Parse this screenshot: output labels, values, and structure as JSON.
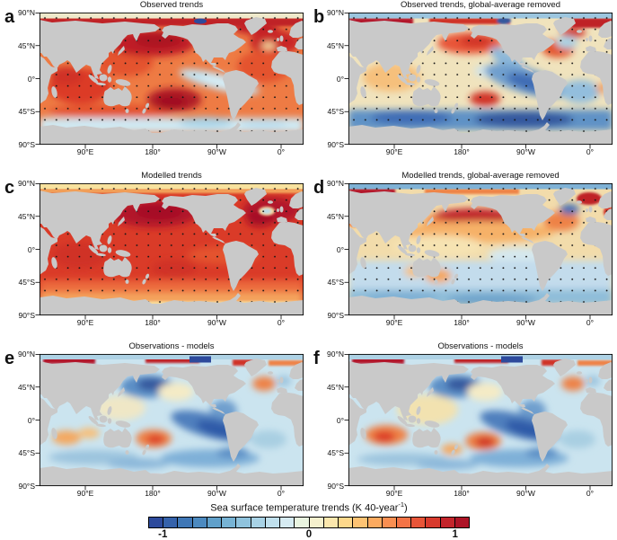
{
  "colorbar": {
    "title_main": "Sea surface temperature trends (K 40-year",
    "title_sup": "-1",
    "title_close": ")",
    "tick_labels": [
      "-1",
      "0",
      "1"
    ],
    "range": [
      -1.1,
      1.1
    ],
    "colors": [
      "#2d4a9c",
      "#3562ab",
      "#3f77b6",
      "#4c8ac0",
      "#60a0ca",
      "#77b3d4",
      "#8fc3dd",
      "#a8d2e5",
      "#c0e0ed",
      "#d6ebf2",
      "#e9f4e0",
      "#f5f0cd",
      "#fbe7ad",
      "#fdd88b",
      "#fdc373",
      "#fcaa5f",
      "#f98f52",
      "#f37346",
      "#e85538",
      "#d83a2d",
      "#c4252b",
      "#ad1326"
    ]
  },
  "axes": {
    "y_ticks": [
      "90°N",
      "45°N",
      "0°",
      "45°S",
      "90°S"
    ],
    "x_ticks": [
      "90°E",
      "180°",
      "90°W",
      "0°"
    ]
  },
  "panels": [
    {
      "letter": "a",
      "title": "Observed trends",
      "stippled": true,
      "base_color": "#ee7b44"
    },
    {
      "letter": "b",
      "title": "Observed trends, global-average removed",
      "stippled": true,
      "base_color": "#f0e3bd"
    },
    {
      "letter": "c",
      "title": "Modelled trends",
      "stippled": true,
      "base_color": "#da3b28"
    },
    {
      "letter": "d",
      "title": "Modelled trends, global-average removed",
      "stippled": true,
      "base_color": "#f2dcab"
    },
    {
      "letter": "e",
      "title": "Observations - models",
      "stippled": false,
      "base_color": "#cbe4ef"
    },
    {
      "letter": "f",
      "title": "Observations - models",
      "stippled": false,
      "base_color": "#cbe4ef"
    }
  ],
  "land_color": "#c9c9c9",
  "chart_data": {
    "type": "heatmap",
    "subtype": "6-panel global ocean maps, equirectangular, Pacific-centered (left edge ~27°E)",
    "variable": "Sea surface temperature trend",
    "units": "K per 40 years",
    "colorbar": {
      "levels": 22,
      "min": -1.1,
      "max": 1.1,
      "ticks": [
        -1,
        0,
        1
      ],
      "palette": "blue-cream-yellow-red diverging"
    },
    "lat_ticks": [
      "90°N",
      "45°N",
      "0°",
      "45°S",
      "90°S"
    ],
    "lon_ticks": [
      "90°E",
      "180°",
      "90°W",
      "0°"
    ],
    "stippling": "black dot grid over ocean in panels a-d; absent in panels e-f",
    "panels": [
      {
        "id": "a",
        "title": "Observed trends",
        "pattern": "Broad warming (+0.3 to +1 K) over most oceans; maxima ~+1 K in NW/central North Pacific, South Pacific near 35S, Indian Ocean, NW Atlantic and Arctic margins; weak cooling ~-0.2 K in eastern equatorial Pacific tongue and parts of the Southern Ocean near 55S; pale 85-90N band with small strong-cooling spot near 130W."
      },
      {
        "id": "b",
        "title": "Observed trends, global-average removed",
        "pattern": "Relative warming in NW North Pacific, South-central Pacific and Arctic/subpolar Atlantic margins; relative cooling (-0.2 to -0.6 K) in eastern tropical Pacific and circumpolar Southern Ocean; light-blue cool eye in subpolar North Atlantic ringed by warming; 85-90N band slightly negative."
      },
      {
        "id": "c",
        "title": "Modelled trends",
        "pattern": "Near-uniform simulated warming (+0.3 to +0.9 K) everywhere; strongest in NW Pacific and NW Atlantic; small cool spot in subpolar North Atlantic; weaker warming (pale yellow) along Antarctic coast and 85-90N band."
      },
      {
        "id": "d",
        "title": "Modelled trends, global-average removed",
        "pattern": "Relative warming band across Northern Hemisphere mid-latitudes (North Pacific ~45N, North Atlantic, Arctic coasts); weak relative cooling (-0.1 to -0.3 K) over Southern Hemisphere oceans, Southern Ocean and 85-90N band; cool blue spot in subpolar North Atlantic."
      },
      {
        "id": "e",
        "title": "Observations - models",
        "pattern": "Observation-minus-model differences: negative (-0.3 to -0.8 K) in NW Pacific, eastern tropical Pacific tongue and Southern Ocean; positive (+0.3 to +0.6 K) in South-central Pacific, subtropical Indian Ocean, Arctic margins and a streak near the Antarctic coast around 180; no stippling."
      },
      {
        "id": "f",
        "title": "Observations - models",
        "pattern": "As panel e but for global-average-removed fields: similar structure with stronger positive anomalies in the subtropical Indian Ocean and South-central Pacific, and the same negative eastern tropical Pacific and NW Pacific anomalies."
      }
    ]
  }
}
